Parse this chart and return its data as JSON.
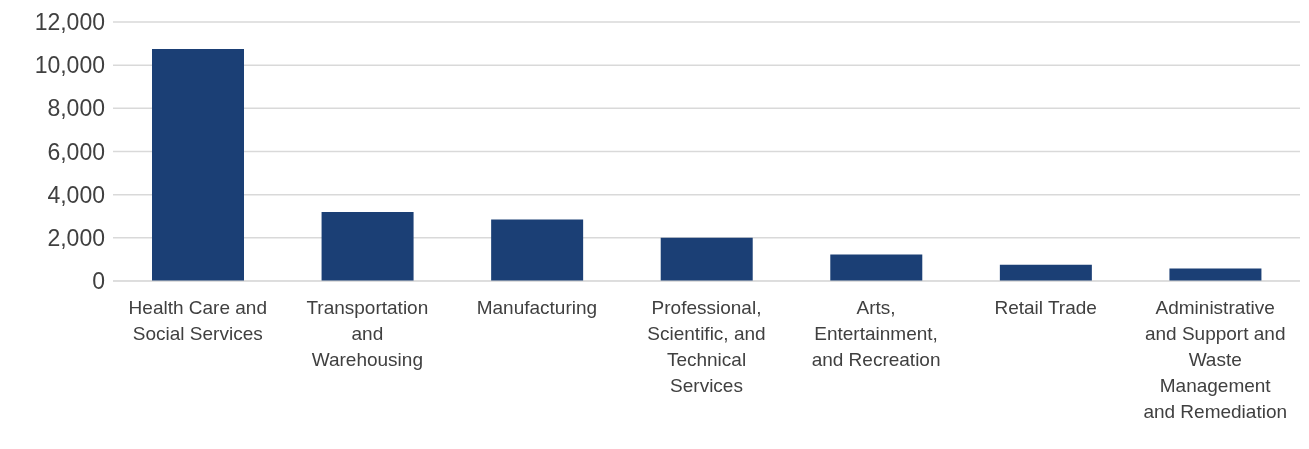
{
  "chart_data": {
    "type": "bar",
    "categories": [
      "Health Care and Social Services",
      "Transportation and Warehousing",
      "Manufacturing",
      "Professional, Scientific, and Technical Services",
      "Arts, Entertainment, and Recreation",
      "Retail Trade",
      "Administrative and Support and Waste Management and Remediation"
    ],
    "values": [
      10750,
      3200,
      2850,
      2000,
      1230,
      750,
      580
    ],
    "color": "#1b3f75",
    "ylim": [
      0,
      12000
    ],
    "yticks": [
      0,
      {
        "value": 2000,
        "label": "2,000"
      },
      {
        "value": 4000,
        "label": "4,000"
      },
      {
        "value": 6000,
        "label": "6,000"
      },
      {
        "value": 8000,
        "label": "8,000"
      },
      {
        "value": 10000,
        "label": "10,000"
      },
      {
        "value": 12000,
        "label": "12,000"
      }
    ],
    "grid": "y",
    "legend": false
  }
}
